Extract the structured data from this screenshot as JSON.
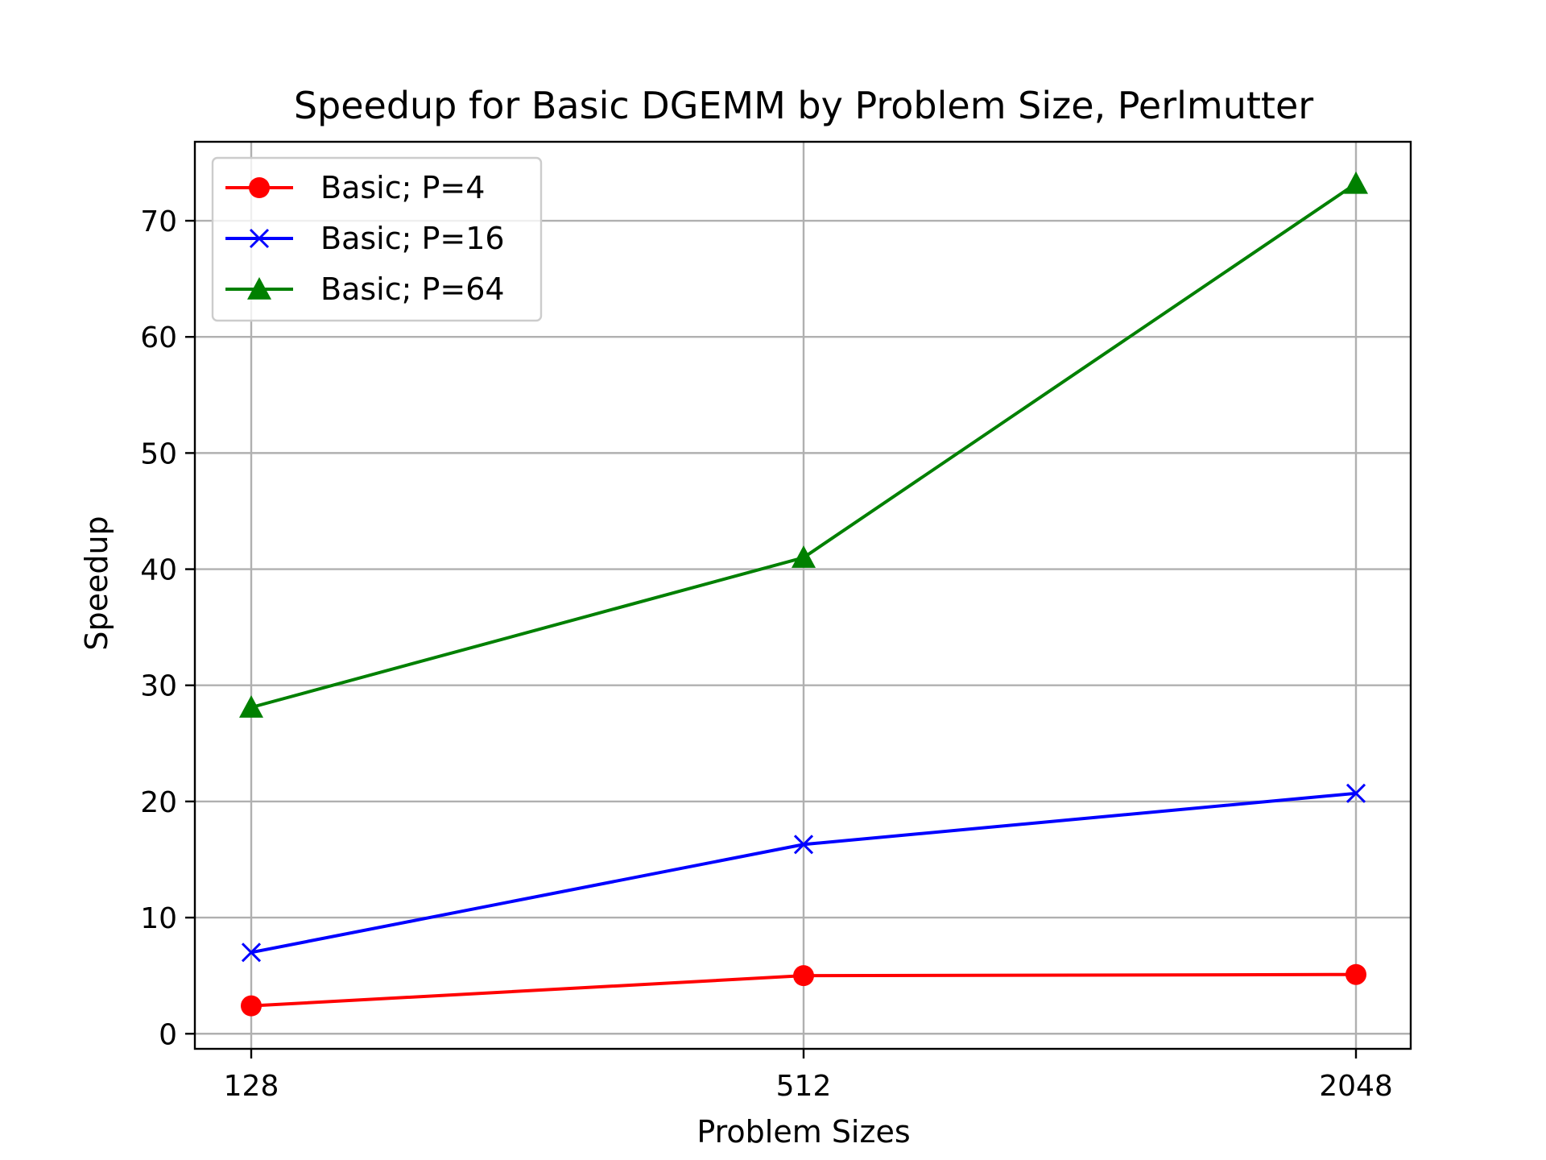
{
  "chart_data": {
    "type": "line",
    "title": "Speedup for Basic DGEMM by Problem Size, Perlmutter",
    "xlabel": "Problem Sizes",
    "ylabel": "Speedup",
    "categories": [
      "128",
      "512",
      "2048"
    ],
    "yticks": [
      0,
      10,
      20,
      30,
      40,
      50,
      60,
      70
    ],
    "ylim": [
      -1.3,
      76.8
    ],
    "grid": true,
    "legend_position": "top-left",
    "series": [
      {
        "name": "Basic; P=4",
        "color": "#ff0000",
        "marker": "circle",
        "values": [
          2.4,
          5.0,
          5.1
        ]
      },
      {
        "name": "Basic; P=16",
        "color": "#0000ff",
        "marker": "x",
        "values": [
          7.0,
          16.3,
          20.7
        ]
      },
      {
        "name": "Basic; P=64",
        "color": "#008000",
        "marker": "triangle",
        "values": [
          28.1,
          41.0,
          73.2
        ]
      }
    ]
  }
}
